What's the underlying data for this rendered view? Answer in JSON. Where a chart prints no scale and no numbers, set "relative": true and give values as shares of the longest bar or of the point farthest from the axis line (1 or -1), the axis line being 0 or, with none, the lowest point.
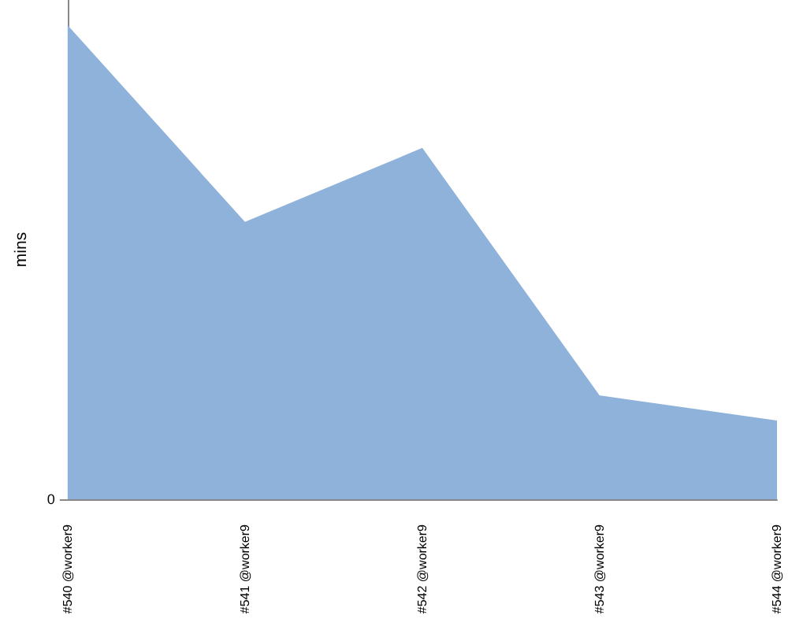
{
  "chart_data": {
    "type": "area",
    "ylabel": "mins",
    "relative": true,
    "categories": [
      "#540 @worker9",
      "#541 @worker9",
      "#542 @worker9",
      "#543 @worker9",
      "#544 @worker9"
    ],
    "values": [
      1,
      0.585,
      0.741,
      0.219,
      0.166
    ],
    "color": "#8fb2da",
    "annotations": [
      "0"
    ],
    "grid": false
  }
}
